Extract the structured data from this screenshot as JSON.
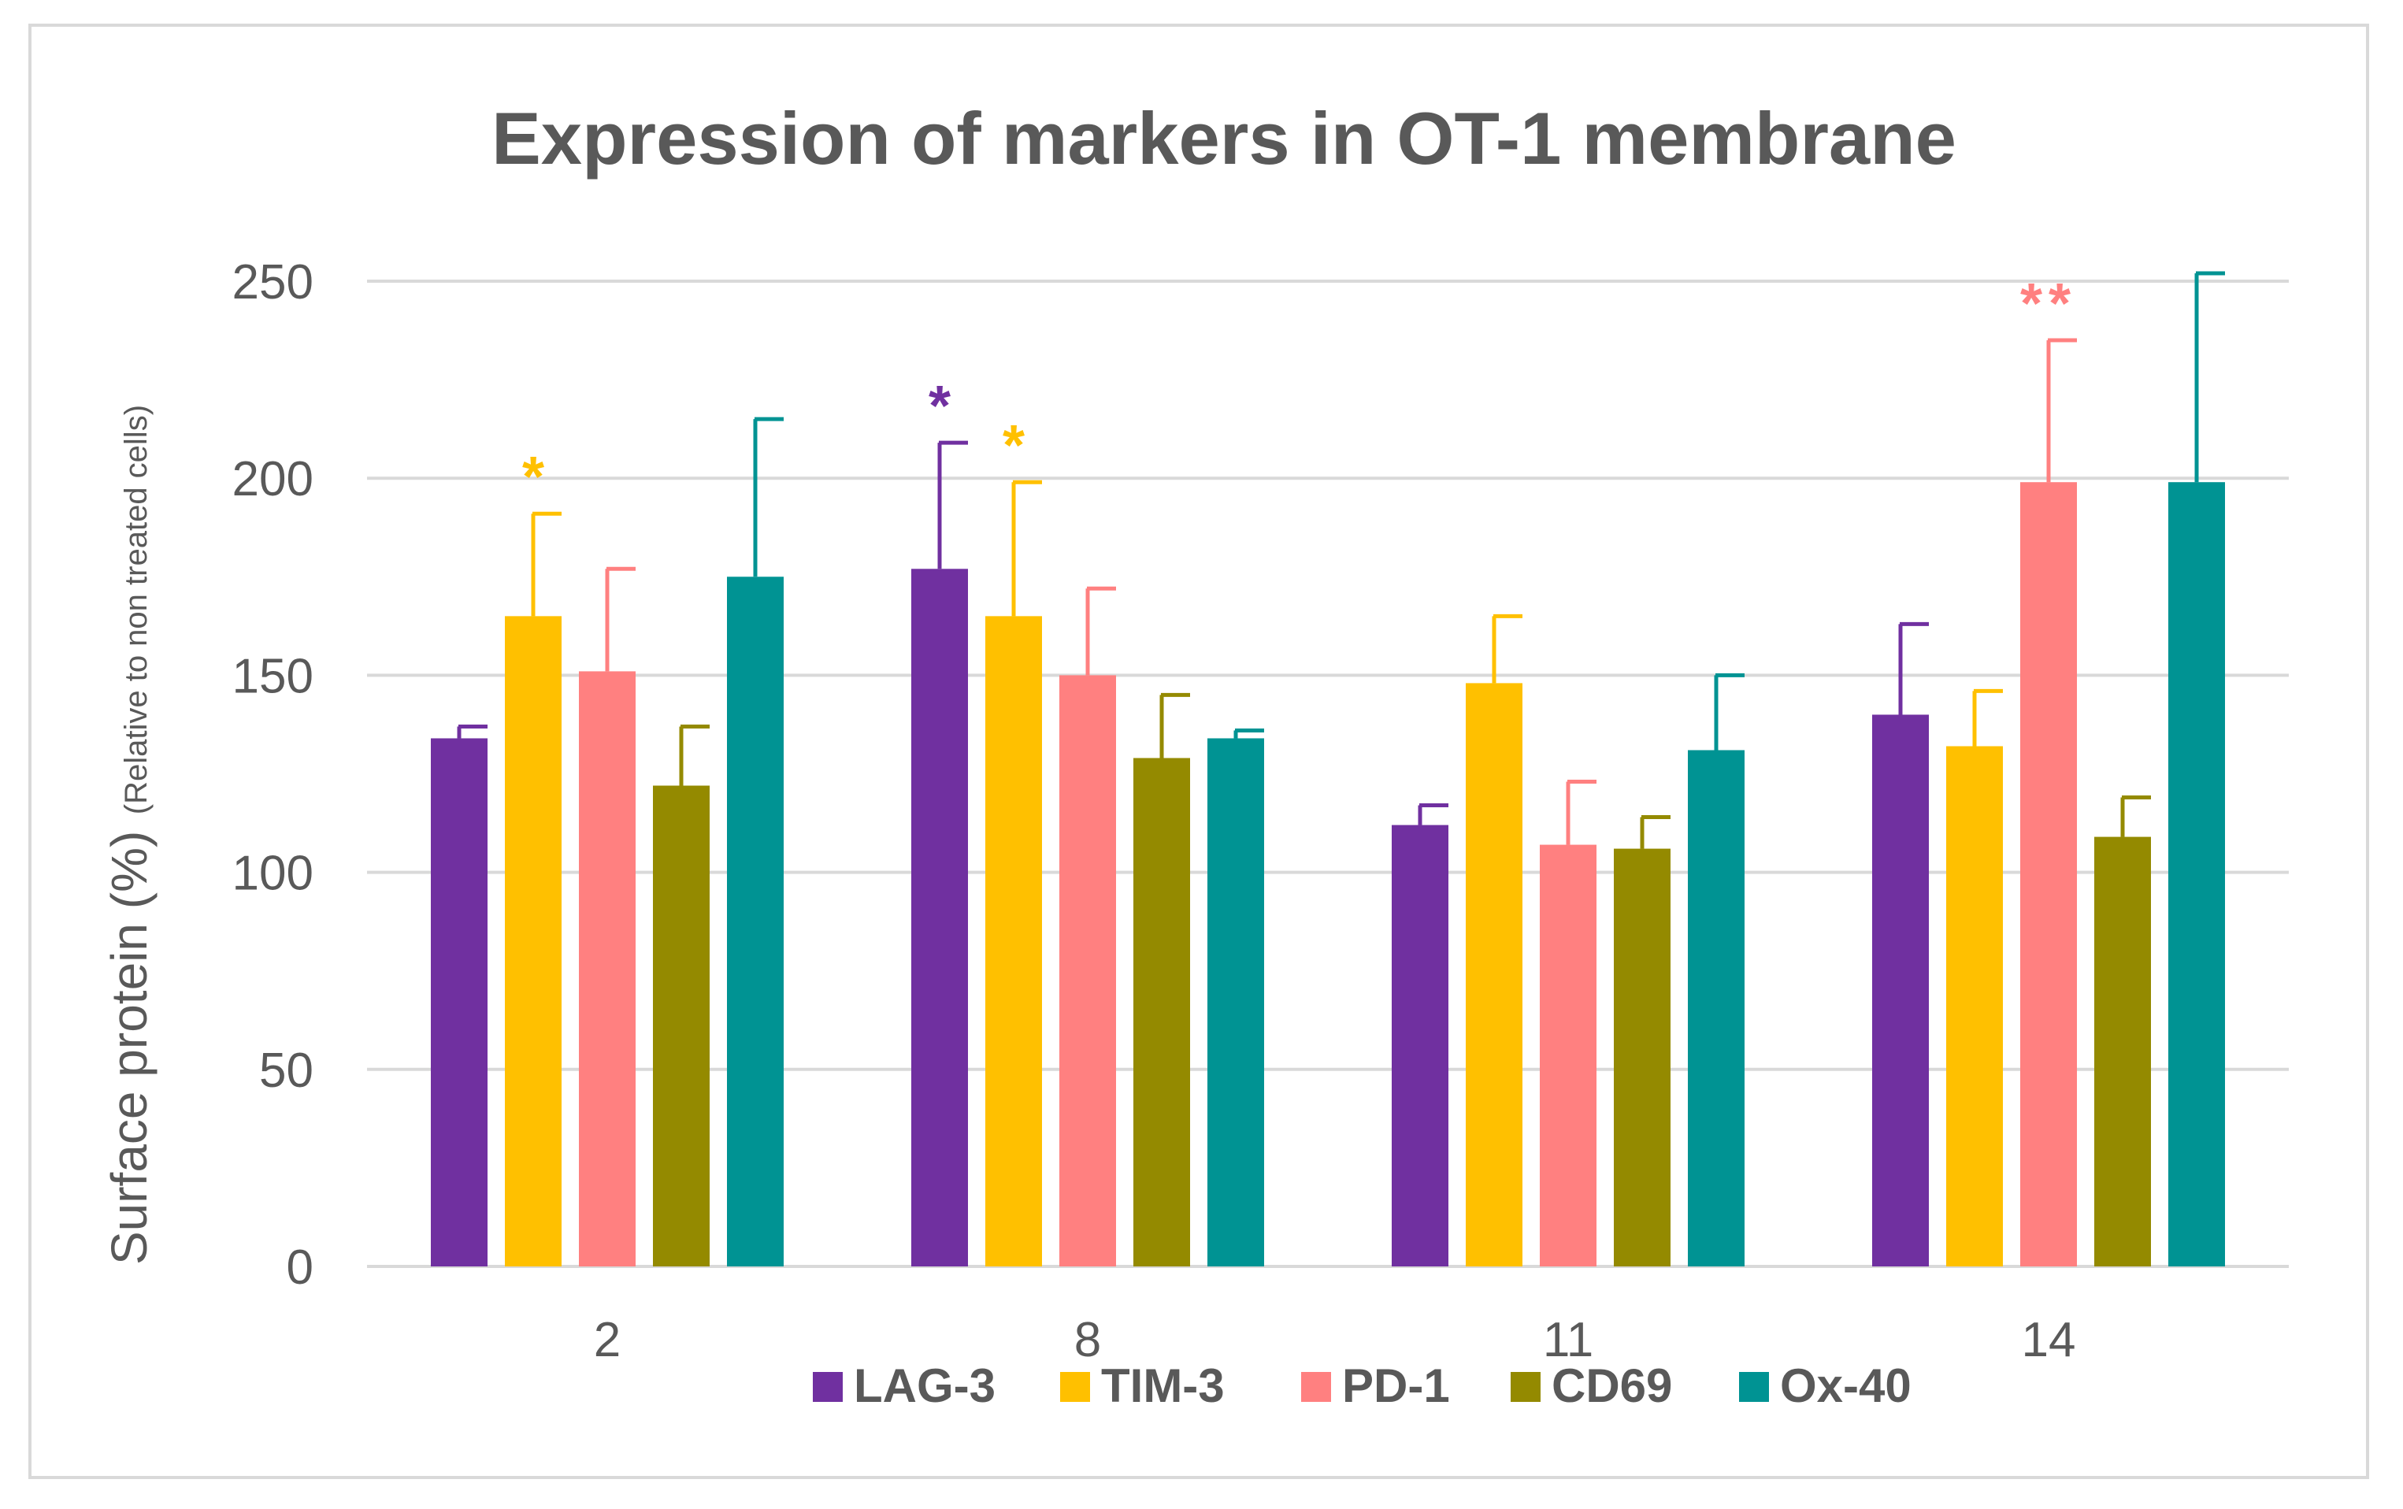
{
  "chart_data": {
    "type": "bar",
    "title": "Expression of markers in OT-1 membrane",
    "ylabel": "Surface protein (%)",
    "ylabel_note": "(Relative to non treated cells)",
    "xlabel": "",
    "ylim": [
      0,
      250
    ],
    "yticks": [
      0,
      50,
      100,
      150,
      200,
      250
    ],
    "grid": true,
    "legend_position": "bottom",
    "categories": [
      "2",
      "8",
      "11",
      "14"
    ],
    "series": [
      {
        "name": "LAG-3",
        "color": "#7030a0",
        "values": [
          134,
          177,
          112,
          140
        ],
        "errors": [
          3,
          32,
          5,
          23
        ]
      },
      {
        "name": "TIM-3",
        "color": "#ffc000",
        "values": [
          165,
          165,
          148,
          132
        ],
        "errors": [
          26,
          34,
          17,
          14
        ]
      },
      {
        "name": "PD-1",
        "color": "#ff8080",
        "values": [
          151,
          150,
          107,
          199
        ],
        "errors": [
          26,
          22,
          16,
          36
        ]
      },
      {
        "name": "CD69",
        "color": "#948a00",
        "values": [
          122,
          129,
          106,
          109
        ],
        "errors": [
          15,
          16,
          8,
          10
        ]
      },
      {
        "name": "Ox-40",
        "color": "#009393",
        "values": [
          175,
          134,
          131,
          199
        ],
        "errors": [
          40,
          2,
          19,
          53
        ]
      }
    ],
    "annotations": [
      {
        "text": "*",
        "category": "2",
        "series": "TIM-3"
      },
      {
        "text": "*",
        "category": "8",
        "series": "LAG-3"
      },
      {
        "text": "*",
        "category": "8",
        "series": "TIM-3"
      },
      {
        "text": "**",
        "category": "14",
        "series": "PD-1"
      }
    ]
  }
}
